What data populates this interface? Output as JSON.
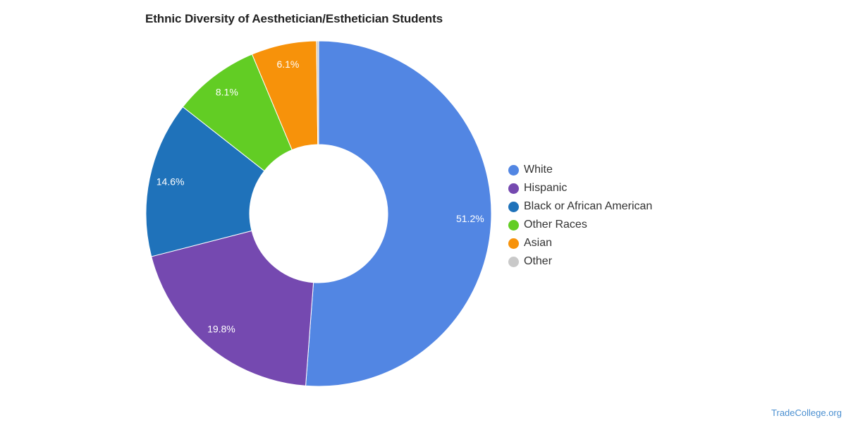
{
  "chart_data": {
    "type": "pie",
    "donut": true,
    "title": "Ethnic Diversity of Aesthetician/Esthetician Students",
    "legend_position": "right",
    "series": [
      {
        "name": "White",
        "value": 51.2,
        "label": "51.2%",
        "color": "#5286e3"
      },
      {
        "name": "Hispanic",
        "value": 19.8,
        "label": "19.8%",
        "color": "#7549b0"
      },
      {
        "name": "Black or African American",
        "value": 14.6,
        "label": "14.6%",
        "color": "#1f72ba"
      },
      {
        "name": "Other Races",
        "value": 8.1,
        "label": "8.1%",
        "color": "#62cd24"
      },
      {
        "name": "Asian",
        "value": 6.1,
        "label": "6.1%",
        "color": "#f7920a"
      },
      {
        "name": "Other",
        "value": 0.2,
        "label": "",
        "color": "#c9c9c9"
      }
    ]
  },
  "footer": {
    "credit": "TradeCollege.org"
  }
}
